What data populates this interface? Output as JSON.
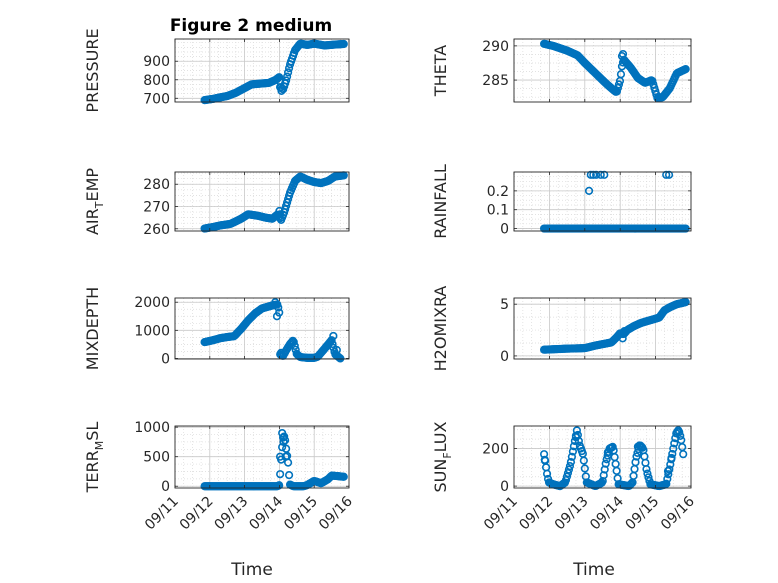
{
  "title": "Figure 2 medium",
  "xlabel": "Time",
  "x_ticks": [
    "09/11",
    "09/12",
    "09/13",
    "09/14",
    "09/15",
    "09/16"
  ],
  "marker_color": "#0072BD",
  "chart_data": [
    {
      "type": "scatter",
      "name": "pressure",
      "title": "Figure 2 medium",
      "ylabel": "PRESSURE",
      "xlim": [
        0,
        5
      ],
      "ylim": [
        680,
        1020
      ],
      "yticks": [
        700,
        800,
        900
      ],
      "knots": [
        [
          0.85,
          690
        ],
        [
          1.1,
          697
        ],
        [
          1.3,
          705
        ],
        [
          1.5,
          712
        ],
        [
          1.75,
          730
        ],
        [
          2.0,
          755
        ],
        [
          2.2,
          775
        ],
        [
          2.5,
          780
        ],
        [
          2.7,
          783
        ],
        [
          2.9,
          800
        ],
        [
          3.0,
          815
        ],
        [
          3.05,
          760
        ],
        [
          3.1,
          745
        ],
        [
          3.2,
          800
        ],
        [
          3.3,
          880
        ],
        [
          3.45,
          960
        ],
        [
          3.6,
          995
        ],
        [
          3.8,
          988
        ],
        [
          4.0,
          995
        ],
        [
          4.3,
          985
        ],
        [
          4.6,
          990
        ],
        [
          4.85,
          993
        ]
      ],
      "extras": [
        [
          3.02,
          760
        ],
        [
          3.06,
          740
        ]
      ]
    },
    {
      "type": "scatter",
      "name": "theta",
      "title": "",
      "ylabel": "THETA",
      "xlim": [
        0,
        5
      ],
      "ylim": [
        281.8,
        291
      ],
      "yticks": [
        285,
        290
      ],
      "knots": [
        [
          0.85,
          290.3
        ],
        [
          1.1,
          290.0
        ],
        [
          1.5,
          289.3
        ],
        [
          1.8,
          288.6
        ],
        [
          2.0,
          287.5
        ],
        [
          2.3,
          286.0
        ],
        [
          2.6,
          284.5
        ],
        [
          2.8,
          283.6
        ],
        [
          2.9,
          283.2
        ],
        [
          3.0,
          285.0
        ],
        [
          3.05,
          287.0
        ],
        [
          3.1,
          288.0
        ],
        [
          3.3,
          286.8
        ],
        [
          3.5,
          285.3
        ],
        [
          3.7,
          284.6
        ],
        [
          3.9,
          285.0
        ],
        [
          4.05,
          282.4
        ],
        [
          4.2,
          282.5
        ],
        [
          4.4,
          283.8
        ],
        [
          4.6,
          286.0
        ],
        [
          4.85,
          286.6
        ]
      ],
      "extras": [
        [
          3.05,
          288.5
        ],
        [
          3.08,
          288.8
        ],
        [
          3.12,
          287.9
        ]
      ]
    },
    {
      "type": "scatter",
      "name": "air_temp",
      "title": "",
      "ylabel": "AIR_TEMP",
      "xlim": [
        0,
        5
      ],
      "ylim": [
        259,
        285.5
      ],
      "yticks": [
        260,
        270,
        280
      ],
      "knots": [
        [
          0.85,
          260.1
        ],
        [
          1.1,
          260.8
        ],
        [
          1.3,
          261.5
        ],
        [
          1.6,
          262.2
        ],
        [
          1.9,
          264.5
        ],
        [
          2.1,
          266.5
        ],
        [
          2.4,
          265.8
        ],
        [
          2.6,
          265.0
        ],
        [
          2.8,
          264.5
        ],
        [
          2.95,
          266.5
        ],
        [
          3.05,
          264.0
        ],
        [
          3.15,
          268.0
        ],
        [
          3.3,
          276.0
        ],
        [
          3.45,
          281.5
        ],
        [
          3.6,
          283.5
        ],
        [
          3.8,
          282.0
        ],
        [
          4.0,
          281.0
        ],
        [
          4.2,
          280.5
        ],
        [
          4.4,
          281.5
        ],
        [
          4.6,
          283.5
        ],
        [
          4.85,
          284.0
        ]
      ],
      "extras": [
        [
          3.0,
          268.0
        ],
        [
          3.02,
          266.5
        ]
      ]
    },
    {
      "type": "scatter",
      "name": "rainfall",
      "title": "",
      "ylabel": "RAINFALL",
      "xlim": [
        0,
        5
      ],
      "ylim": [
        -0.013,
        0.3
      ],
      "yticks": [
        0,
        0.1,
        0.2
      ],
      "ytick_labels": [
        "0",
        "0.1",
        "0.2"
      ],
      "knots": [
        [
          0.85,
          0
        ],
        [
          4.85,
          0
        ]
      ],
      "extras": [
        [
          2.12,
          0.2
        ],
        [
          2.17,
          0.285
        ],
        [
          2.24,
          0.285
        ],
        [
          2.32,
          0.285
        ],
        [
          2.45,
          0.285
        ],
        [
          2.55,
          0.285
        ],
        [
          4.3,
          0.285
        ],
        [
          4.38,
          0.285
        ]
      ]
    },
    {
      "type": "scatter",
      "name": "mixdepth",
      "title": "",
      "ylabel": "MIXDEPTH",
      "xlim": [
        0,
        5
      ],
      "ylim": [
        -20,
        2150
      ],
      "yticks": [
        0,
        1000,
        2000
      ],
      "knots": [
        [
          0.85,
          580
        ],
        [
          1.1,
          650
        ],
        [
          1.3,
          720
        ],
        [
          1.5,
          760
        ],
        [
          1.7,
          790
        ],
        [
          1.9,
          1050
        ],
        [
          2.1,
          1350
        ],
        [
          2.3,
          1600
        ],
        [
          2.5,
          1780
        ],
        [
          2.7,
          1850
        ],
        [
          2.85,
          1900
        ],
        [
          2.95,
          1920
        ],
        [
          3.0,
          1600
        ],
        [
          3.02,
          150
        ],
        [
          3.1,
          80
        ],
        [
          3.2,
          300
        ],
        [
          3.3,
          500
        ],
        [
          3.4,
          650
        ],
        [
          3.5,
          150
        ],
        [
          3.6,
          50
        ],
        [
          3.8,
          20
        ],
        [
          4.0,
          20
        ],
        [
          4.1,
          60
        ],
        [
          4.3,
          350
        ],
        [
          4.4,
          500
        ],
        [
          4.5,
          650
        ],
        [
          4.6,
          150
        ],
        [
          4.75,
          0
        ]
      ],
      "extras": [
        [
          2.88,
          2000
        ],
        [
          2.93,
          1500
        ],
        [
          3.05,
          200
        ],
        [
          4.55,
          800
        ],
        [
          4.65,
          300
        ]
      ]
    },
    {
      "type": "scatter",
      "name": "h2omixra",
      "title": "",
      "ylabel": "H2OMIXRA",
      "xlim": [
        0,
        5
      ],
      "ylim": [
        -0.3,
        5.6
      ],
      "yticks": [
        0,
        5
      ],
      "knots": [
        [
          0.85,
          0.6
        ],
        [
          1.5,
          0.7
        ],
        [
          2.0,
          0.75
        ],
        [
          2.3,
          1.0
        ],
        [
          2.6,
          1.2
        ],
        [
          2.75,
          1.3
        ],
        [
          2.9,
          1.8
        ],
        [
          3.0,
          2.2
        ],
        [
          3.1,
          2.1
        ],
        [
          3.2,
          2.5
        ],
        [
          3.4,
          2.9
        ],
        [
          3.6,
          3.2
        ],
        [
          3.8,
          3.4
        ],
        [
          4.0,
          3.6
        ],
        [
          4.1,
          3.7
        ],
        [
          4.25,
          4.4
        ],
        [
          4.4,
          4.7
        ],
        [
          4.6,
          5.0
        ],
        [
          4.85,
          5.2
        ]
      ],
      "extras": [
        [
          3.07,
          1.7
        ],
        [
          3.12,
          2.4
        ]
      ]
    },
    {
      "type": "scatter",
      "name": "terr_msl",
      "title": "",
      "ylabel": "TERR_MSL",
      "xlim": [
        0,
        5
      ],
      "ylim": [
        -30,
        1020
      ],
      "yticks": [
        0,
        500,
        1000
      ],
      "knots": [
        [
          0.85,
          0
        ],
        [
          2.95,
          0
        ],
        [
          3.0,
          20
        ],
        [
          3.05,
          450
        ],
        [
          3.1,
          820
        ],
        [
          3.15,
          850
        ],
        [
          3.2,
          600
        ],
        [
          3.25,
          400
        ],
        [
          3.3,
          30
        ],
        [
          3.4,
          0
        ],
        [
          3.7,
          0
        ],
        [
          3.8,
          20
        ],
        [
          4.0,
          90
        ],
        [
          4.2,
          50
        ],
        [
          4.4,
          120
        ],
        [
          4.5,
          180
        ],
        [
          4.7,
          170
        ],
        [
          4.85,
          160
        ]
      ],
      "extras": [
        [
          3.02,
          500
        ],
        [
          3.08,
          900
        ],
        [
          3.12,
          750
        ],
        [
          3.18,
          500
        ]
      ]
    },
    {
      "type": "scatter",
      "name": "sun_flux",
      "title": "",
      "ylabel": "SUN_FLUX",
      "xlim": [
        0,
        5
      ],
      "ylim": [
        -10,
        320
      ],
      "yticks": [
        0,
        200
      ],
      "knots": [
        [
          0.85,
          170
        ],
        [
          0.93,
          70
        ],
        [
          0.98,
          20
        ],
        [
          1.1,
          10
        ],
        [
          1.3,
          0
        ],
        [
          1.45,
          20
        ],
        [
          1.6,
          120
        ],
        [
          1.7,
          220
        ],
        [
          1.78,
          300
        ],
        [
          1.85,
          220
        ],
        [
          1.95,
          170
        ],
        [
          2.05,
          20
        ],
        [
          2.3,
          0
        ],
        [
          2.5,
          20
        ],
        [
          2.6,
          130
        ],
        [
          2.7,
          200
        ],
        [
          2.8,
          210
        ],
        [
          2.9,
          80
        ],
        [
          2.95,
          10
        ],
        [
          3.1,
          5
        ],
        [
          3.25,
          0
        ],
        [
          3.35,
          20
        ],
        [
          3.45,
          150
        ],
        [
          3.55,
          220
        ],
        [
          3.65,
          200
        ],
        [
          3.75,
          80
        ],
        [
          3.85,
          10
        ],
        [
          4.1,
          0
        ],
        [
          4.3,
          10
        ],
        [
          4.4,
          100
        ],
        [
          4.5,
          200
        ],
        [
          4.58,
          280
        ],
        [
          4.65,
          300
        ],
        [
          4.72,
          250
        ],
        [
          4.78,
          170
        ]
      ],
      "extras": [
        [
          0.87,
          140
        ],
        [
          1.75,
          260
        ],
        [
          2.65,
          180
        ],
        [
          3.5,
          210
        ],
        [
          4.45,
          150
        ],
        [
          4.35,
          80
        ]
      ]
    }
  ]
}
